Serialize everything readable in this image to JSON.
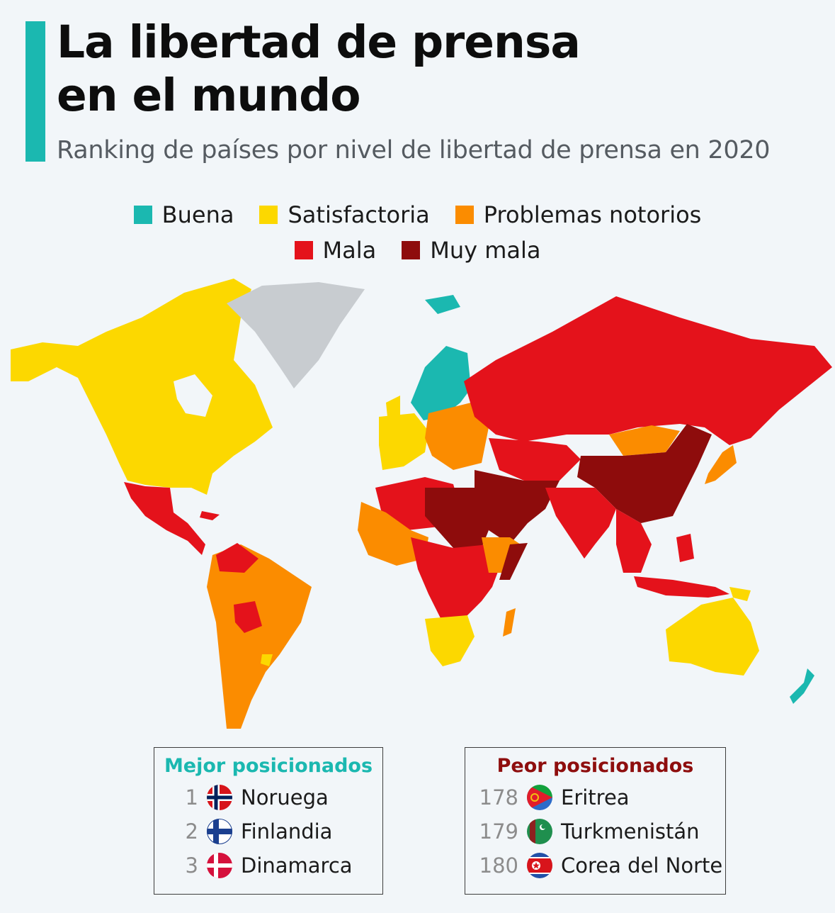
{
  "header": {
    "title_line1": "La libertad de prensa",
    "title_line2": "en el mundo",
    "subtitle": "Ranking de países por nivel de libertad de prensa en 2020"
  },
  "legend": {
    "items": [
      {
        "label": "Buena",
        "color": "#1bb8b0"
      },
      {
        "label": "Satisfactoria",
        "color": "#fcd800"
      },
      {
        "label": "Problemas notorios",
        "color": "#fb8c00"
      },
      {
        "label": "Mala",
        "color": "#e4121b"
      },
      {
        "label": "Muy mala",
        "color": "#8e0c0c"
      }
    ]
  },
  "map": {
    "no_data_color": "#c8ccd0",
    "regions": {
      "north_america": "Satisfactoria",
      "greenland": "no data",
      "mexico_central_america": "Mala",
      "south_america": "Problemas notorios",
      "venezuela_bolivia": "Mala",
      "nordic": "Buena",
      "western_europe": "Satisfactoria",
      "eastern_europe": "Problemas notorios",
      "russia": "Mala",
      "china": "Muy mala",
      "mongolia": "Problemas notorios",
      "japan": "Problemas notorios",
      "middle_east": "Muy mala",
      "south_asia": "Mala",
      "north_africa": "Mala",
      "west_africa": "Problemas notorios",
      "southern_africa": "Satisfactoria",
      "australia": "Satisfactoria",
      "new_zealand": "Buena"
    }
  },
  "best": {
    "title": "Mejor posicionados",
    "items": [
      {
        "rank": "1",
        "country": "Noruega",
        "flag": "norway-flag"
      },
      {
        "rank": "2",
        "country": "Finlandia",
        "flag": "finland-flag"
      },
      {
        "rank": "3",
        "country": "Dinamarca",
        "flag": "denmark-flag"
      }
    ]
  },
  "worst": {
    "title": "Peor posicionados",
    "items": [
      {
        "rank": "178",
        "country": "Eritrea",
        "flag": "eritrea-flag"
      },
      {
        "rank": "179",
        "country": "Turkmenistán",
        "flag": "turkmenistan-flag"
      },
      {
        "rank": "180",
        "country": "Corea del Norte",
        "flag": "north-korea-flag"
      }
    ]
  }
}
